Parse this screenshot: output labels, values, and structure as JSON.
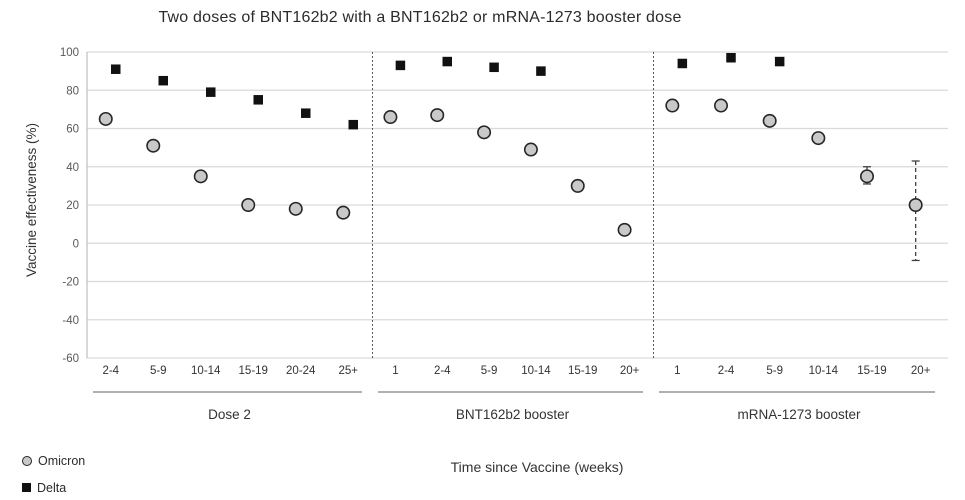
{
  "chart_data": {
    "type": "scatter",
    "title": "Two doses of BNT162b2 with a BNT162b2 or mRNA-1273 booster dose",
    "xlabel": "Time since Vaccine (weeks)",
    "ylabel": "Vaccine effectiveness (%)",
    "ylim": [
      -60,
      100
    ],
    "yticks": [
      100,
      80,
      60,
      40,
      20,
      0,
      -20,
      -40,
      -60
    ],
    "grid": "horizontal",
    "legend_position": "bottom-left",
    "legend": [
      {
        "label": "Omicron",
        "marker": "circle"
      },
      {
        "label": "Delta",
        "marker": "square"
      }
    ],
    "panels": [
      {
        "label": "Dose 2",
        "categories": [
          "2-4",
          "5-9",
          "10-14",
          "15-19",
          "20-24",
          "25+"
        ],
        "series": [
          {
            "name": "Omicron",
            "marker": "circle",
            "values": [
              65,
              51,
              35,
              20,
              18,
              16
            ]
          },
          {
            "name": "Delta",
            "marker": "square",
            "values": [
              91,
              85,
              79,
              75,
              68,
              62
            ]
          }
        ],
        "error_bars": []
      },
      {
        "label": "BNT162b2 booster",
        "categories": [
          "1",
          "2-4",
          "5-9",
          "10-14",
          "15-19",
          "20+"
        ],
        "series": [
          {
            "name": "Omicron",
            "marker": "circle",
            "values": [
              66,
              67,
              58,
              49,
              30,
              7
            ]
          },
          {
            "name": "Delta",
            "marker": "square",
            "values": [
              93,
              95,
              92,
              90,
              null,
              null
            ]
          }
        ],
        "error_bars": []
      },
      {
        "label": "mRNA-1273 booster",
        "categories": [
          "1",
          "2-4",
          "5-9",
          "10-14",
          "15-19",
          "20+"
        ],
        "series": [
          {
            "name": "Omicron",
            "marker": "circle",
            "values": [
              72,
              72,
              64,
              55,
              35,
              20
            ]
          },
          {
            "name": "Delta",
            "marker": "square",
            "values": [
              94,
              97,
              95,
              null,
              null,
              null
            ]
          }
        ],
        "error_bars": [
          {
            "series": "Omicron",
            "category_index": 4,
            "low": 31,
            "high": 40
          },
          {
            "series": "Omicron",
            "category_index": 5,
            "low": -9,
            "high": 43
          }
        ]
      }
    ],
    "colors": {
      "omicron_fill": "#c9c9c9",
      "omicron_stroke": "#262626",
      "delta_fill": "#111111",
      "gridline": "#d9d9d9",
      "axis_line": "#bfbfbf",
      "separator": "#595959",
      "error_bar": "#404040",
      "tick_text": "#595959",
      "label_text": "#333333"
    }
  }
}
